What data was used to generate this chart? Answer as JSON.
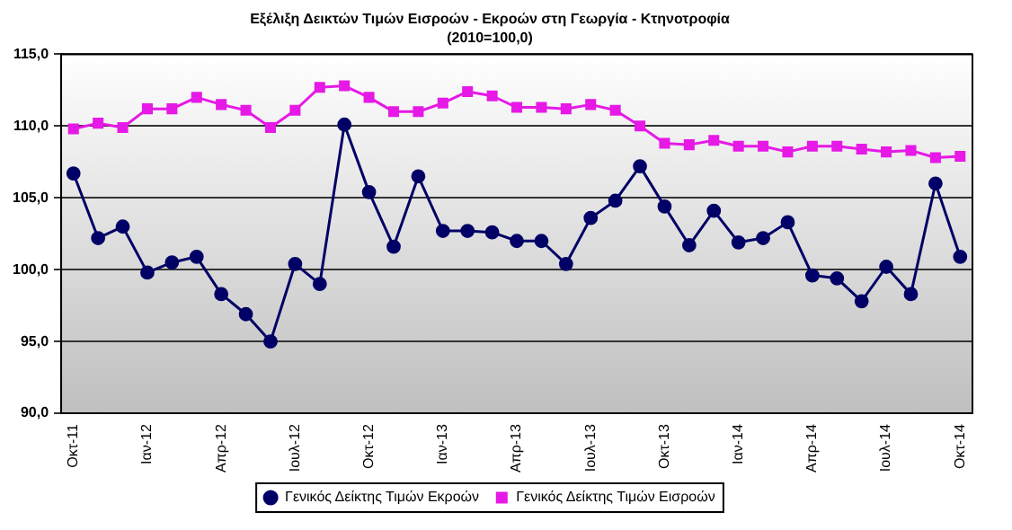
{
  "chart_data": {
    "type": "line",
    "title": "Εξέλιξη Δεικτών Τιμών Εισροών - Εκροών στη Γεωργία - Κτηνοτροφία",
    "subtitle": "(2010=100,0)",
    "categories": [
      "Οκτ-11",
      null,
      null,
      "Ιαν-12",
      null,
      null,
      "Απρ-12",
      null,
      null,
      "Ιουλ-12",
      null,
      null,
      "Οκτ-12",
      null,
      null,
      "Ιαν-13",
      null,
      null,
      "Απρ-13",
      null,
      null,
      "Ιουλ-13",
      null,
      null,
      "Οκτ-13",
      null,
      null,
      "Ιαν-14",
      null,
      null,
      "Απρ-14",
      null,
      null,
      "Ιουλ-14",
      null,
      null,
      "Οκτ-14"
    ],
    "series": [
      {
        "name": "Γενικός Δείκτης Τιμών Εκροών",
        "color": "#000066",
        "marker": "circle",
        "values": [
          106.7,
          102.2,
          103.0,
          99.8,
          100.5,
          100.9,
          98.3,
          96.9,
          95.0,
          100.4,
          99.0,
          110.1,
          105.4,
          101.6,
          106.5,
          102.7,
          102.7,
          102.6,
          102.0,
          102.0,
          100.4,
          103.6,
          104.8,
          107.2,
          104.4,
          101.7,
          104.1,
          101.9,
          102.2,
          103.3,
          99.6,
          99.4,
          97.8,
          100.2,
          98.3,
          106.0,
          100.9
        ]
      },
      {
        "name": "Γενικός Δείκτης Τιμών Εισροών",
        "color": "#e619e6",
        "marker": "square",
        "values": [
          109.8,
          110.2,
          109.9,
          111.2,
          111.2,
          112.0,
          111.5,
          111.1,
          109.9,
          111.1,
          112.7,
          112.8,
          112.0,
          111.0,
          111.0,
          111.6,
          112.4,
          112.1,
          111.3,
          111.3,
          111.2,
          111.5,
          111.1,
          110.0,
          108.8,
          108.7,
          109.0,
          108.6,
          108.6,
          108.2,
          108.6,
          108.6,
          108.4,
          108.2,
          108.3,
          107.8,
          107.9
        ]
      }
    ],
    "ylim": [
      90,
      115
    ],
    "yticks": [
      {
        "value": 90,
        "label": "90,0"
      },
      {
        "value": 95,
        "label": "95,0"
      },
      {
        "value": 100,
        "label": "100,0"
      },
      {
        "value": 105,
        "label": "105,0"
      },
      {
        "value": 110,
        "label": "110,0"
      },
      {
        "value": 115,
        "label": "115,0"
      }
    ],
    "grid": "y",
    "legend": "bottom",
    "line_style": "solid"
  }
}
